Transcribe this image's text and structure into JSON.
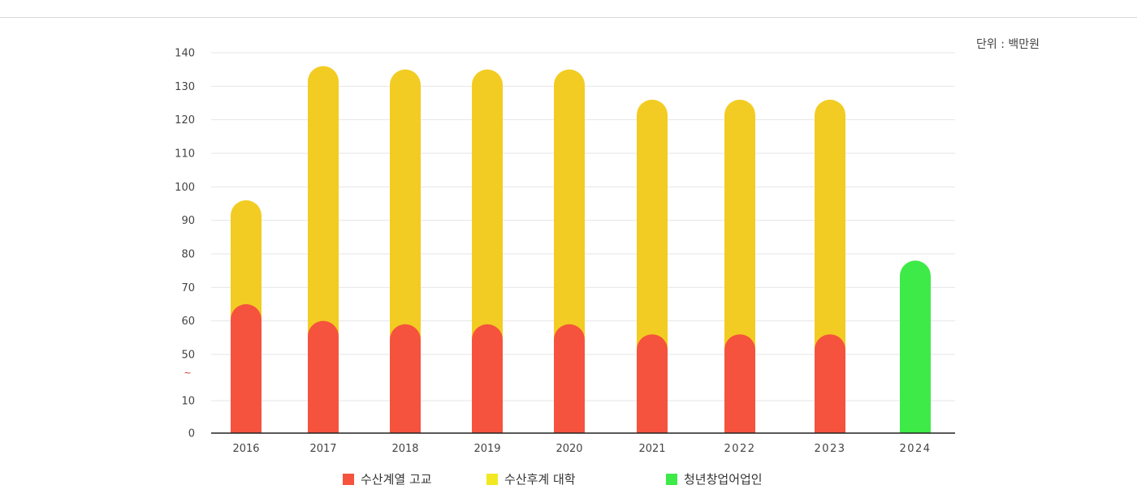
{
  "unit_label": "단위 : 백만원",
  "axis_break_marker": "~",
  "colors": {
    "high_school": "#f5533d",
    "university": "#f2cc22",
    "youth_startup": "#3eea47",
    "grid": "#e6e6e6",
    "baseline": "#222222",
    "break_marker": "#cc2a2a"
  },
  "chart_data": {
    "type": "bar",
    "stacked": true,
    "categories": [
      "2016",
      "2017",
      "2018",
      "2019",
      "2020",
      "2021",
      "2022",
      "2023",
      "2024"
    ],
    "y_ticks": [
      "0",
      "10",
      "50",
      "60",
      "70",
      "80",
      "90",
      "100",
      "110",
      "120",
      "130",
      "140"
    ],
    "y_tick_values": [
      0,
      10,
      50,
      60,
      70,
      80,
      90,
      100,
      110,
      120,
      130,
      140
    ],
    "axis_break": [
      10,
      50
    ],
    "ylim": [
      0,
      140
    ],
    "grid": true,
    "legend_position": "bottom",
    "series": [
      {
        "name": "수산계열 고교",
        "color": "#f5533d",
        "values": [
          65,
          60,
          59,
          59,
          59,
          56,
          56,
          56,
          0
        ]
      },
      {
        "name": "수산후계 대학",
        "color": "#f2cc22",
        "values": [
          31,
          76,
          76,
          76,
          76,
          70,
          70,
          70,
          0
        ]
      },
      {
        "name": "청년창업어업인",
        "color": "#3eea47",
        "values": [
          0,
          0,
          0,
          0,
          0,
          0,
          0,
          0,
          78
        ]
      }
    ]
  }
}
